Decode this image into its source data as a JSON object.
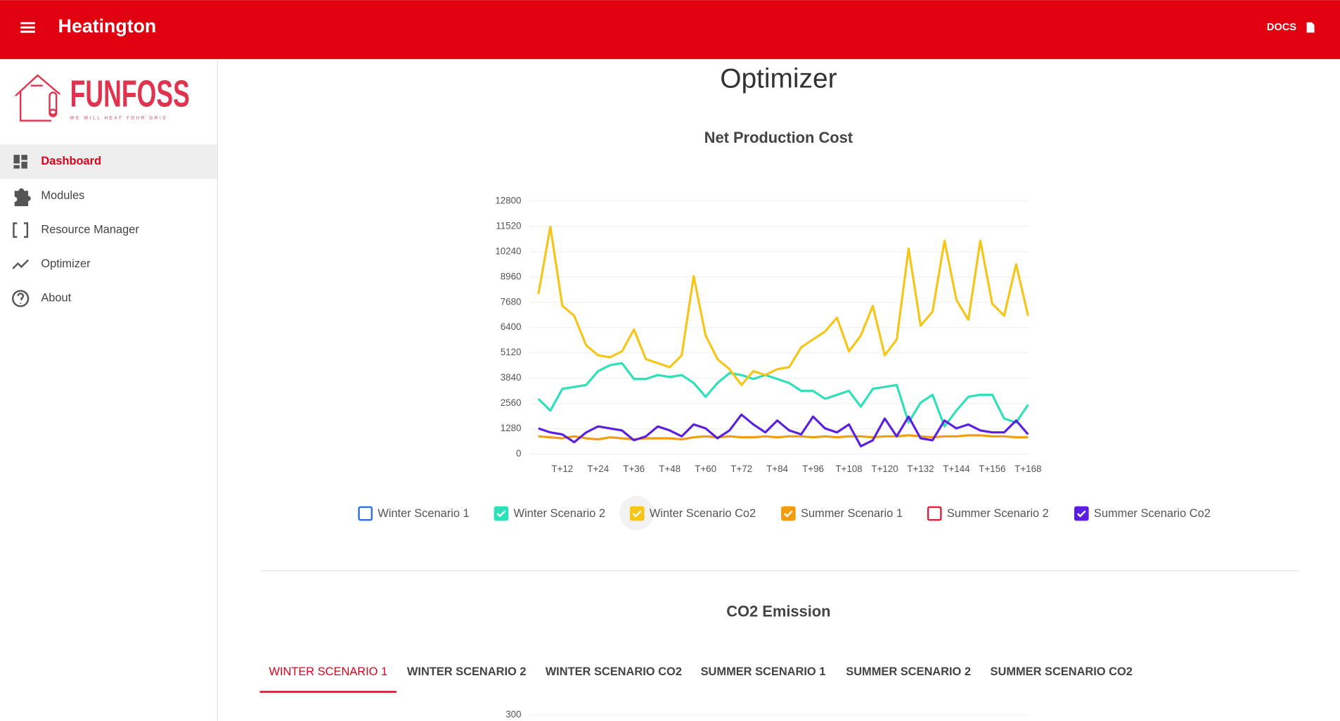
{
  "header": {
    "title": "Heatington",
    "docs": "DOCS"
  },
  "sidebar": {
    "logo": "FUNFOSS",
    "tagline": "WE WILL HEAT YOUR GRID",
    "nav": [
      "Dashboard",
      "Modules",
      "Resource Manager",
      "Optimizer",
      "About"
    ],
    "active": 0
  },
  "page_title": "Optimizer",
  "chart_data": [
    {
      "type": "line",
      "title": "Net Production Cost",
      "categories": [
        null,
        null,
        "T+12",
        null,
        null,
        "T+24",
        null,
        null,
        "T+36",
        null,
        null,
        "T+48",
        null,
        null,
        "T+60",
        null,
        null,
        "T+72",
        null,
        null,
        "T+84",
        null,
        null,
        "T+96",
        null,
        null,
        "T+108",
        null,
        null,
        "T+120",
        null,
        null,
        "T+132",
        null,
        null,
        "T+144",
        null,
        null,
        "T+156",
        null,
        null,
        "T+168"
      ],
      "ylim": [
        0,
        12800
      ],
      "yticks": [
        0,
        1280,
        2560,
        3840,
        5120,
        6400,
        7680,
        8960,
        10240,
        11520,
        12800
      ],
      "grid": true,
      "series": [
        {
          "name": "Winter Scenario 1",
          "color": "#2f6fe0",
          "checked": false
        },
        {
          "name": "Winter Scenario 2",
          "color": "#2de0b8",
          "checked": true,
          "values": [
            2800,
            2200,
            3300,
            3400,
            3500,
            4200,
            4500,
            4600,
            3800,
            3800,
            4000,
            3900,
            4000,
            3600,
            2900,
            3600,
            4100,
            4000,
            3800,
            4000,
            3800,
            3600,
            3200,
            3200,
            2800,
            3000,
            3200,
            2400,
            3300,
            3400,
            3500,
            1600,
            2600,
            3000,
            1400,
            2200,
            2900,
            3000,
            3000,
            1800,
            1600,
            2500
          ]
        },
        {
          "name": "Winter Scenario Co2",
          "color": "#f5c518",
          "checked": true,
          "values": [
            8100,
            11500,
            7500,
            7000,
            5500,
            5000,
            4900,
            5200,
            6300,
            4800,
            4600,
            4400,
            5000,
            9000,
            6000,
            4800,
            4300,
            3500,
            4200,
            4000,
            4300,
            4400,
            5400,
            5800,
            6200,
            6900,
            5200,
            6000,
            7500,
            5000,
            5800,
            10400,
            6500,
            7200,
            10800,
            7800,
            6800,
            10800,
            7600,
            7000,
            9600,
            7000
          ]
        },
        {
          "name": "Summer Scenario 1",
          "color": "#f39c12",
          "checked": true,
          "values": [
            900,
            850,
            800,
            900,
            800,
            750,
            850,
            800,
            750,
            800,
            800,
            800,
            750,
            850,
            900,
            850,
            900,
            850,
            850,
            900,
            850,
            900,
            900,
            850,
            900,
            850,
            900,
            900,
            850,
            900,
            900,
            950,
            900,
            850,
            900,
            900,
            950,
            950,
            900,
            900,
            850,
            850
          ]
        },
        {
          "name": "Summer Scenario 2",
          "color": "#e0203a",
          "checked": false
        },
        {
          "name": "Summer Scenario Co2",
          "color": "#5a1fe0",
          "checked": true,
          "values": [
            1300,
            1100,
            1000,
            600,
            1100,
            1400,
            1300,
            1200,
            700,
            900,
            1400,
            1200,
            900,
            1500,
            1300,
            800,
            1200,
            2000,
            1500,
            1100,
            1700,
            1200,
            1000,
            1900,
            1300,
            1100,
            1500,
            400,
            700,
            1800,
            900,
            1900,
            800,
            700,
            1700,
            1300,
            1500,
            1200,
            1100,
            1100,
            1700,
            1000
          ]
        }
      ]
    },
    {
      "type": "line",
      "title": "CO2 Emission",
      "tabs": [
        "WINTER SCENARIO 1",
        "WINTER SCENARIO 2",
        "WINTER SCENARIO CO2",
        "SUMMER SCENARIO 1",
        "SUMMER SCENARIO 2",
        "SUMMER SCENARIO CO2"
      ],
      "active_tab": 0,
      "yticks": [
        300
      ]
    }
  ]
}
